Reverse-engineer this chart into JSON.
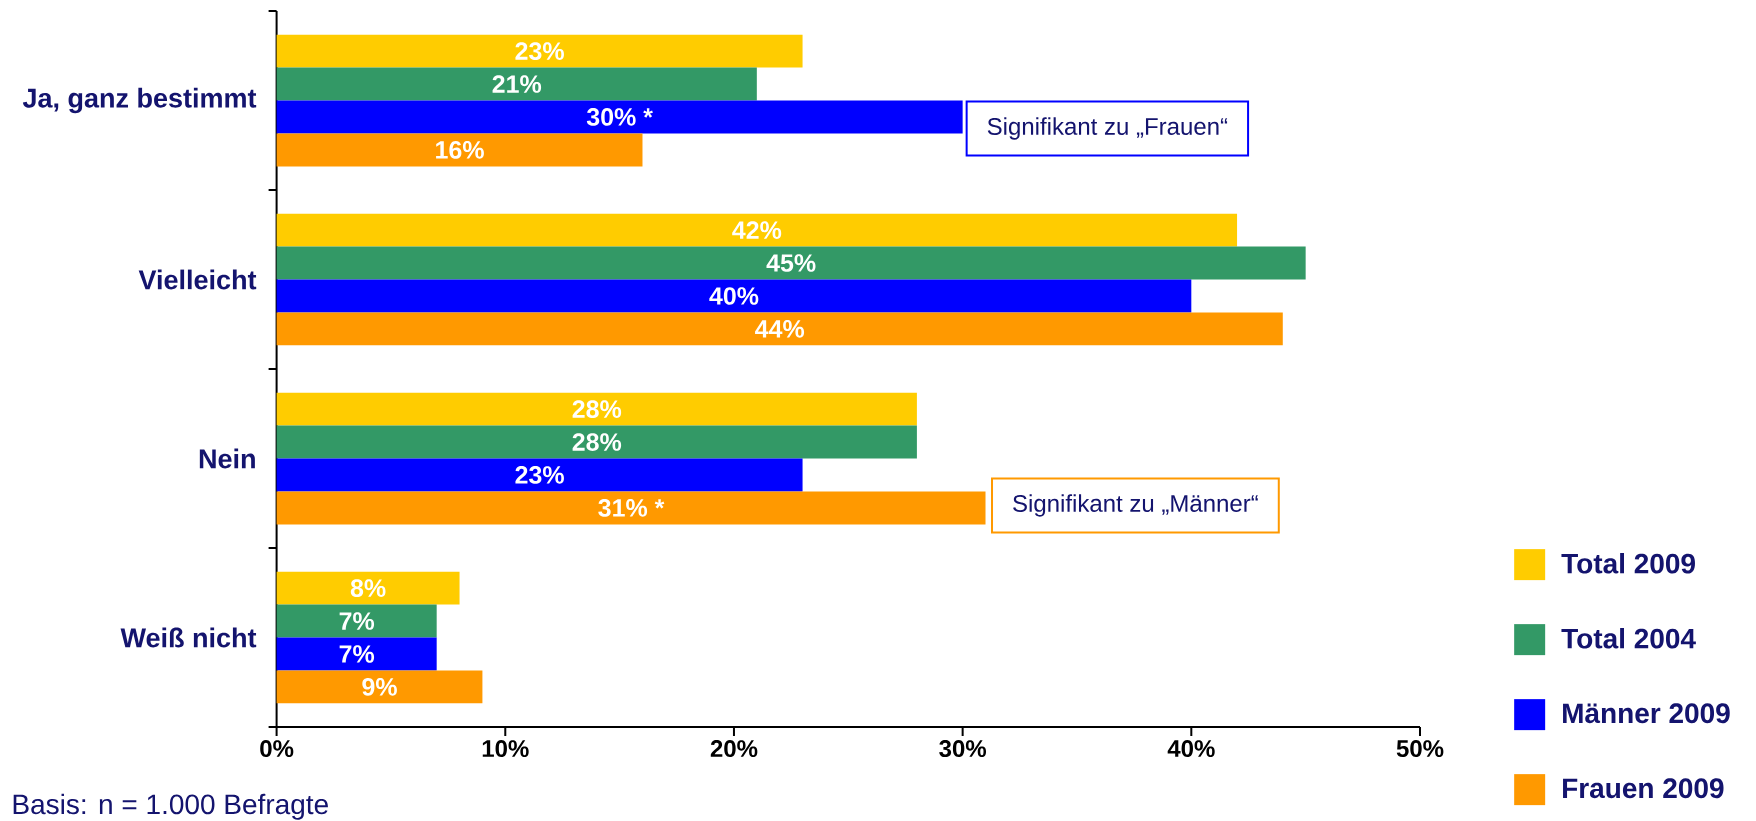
{
  "chart_data": {
    "type": "bar",
    "orientation": "horizontal",
    "categories": [
      "Ja, ganz bestimmt",
      "Vielleicht",
      "Nein",
      "Weiß nicht"
    ],
    "series": [
      {
        "name": "Total 2009",
        "color": "#ffcc00",
        "values": [
          23,
          42,
          28,
          8
        ],
        "value_labels": [
          "23%",
          "42%",
          "28%",
          "8%"
        ]
      },
      {
        "name": "Total 2004",
        "color": "#339966",
        "values": [
          21,
          45,
          28,
          7
        ],
        "value_labels": [
          "21%",
          "45%",
          "28%",
          "7%"
        ]
      },
      {
        "name": "Männer 2009",
        "color": "#0000ff",
        "values": [
          30,
          40,
          23,
          7
        ],
        "value_labels": [
          "30% *",
          "40%",
          "23%",
          "7%"
        ]
      },
      {
        "name": "Frauen 2009",
        "color": "#ff9900",
        "values": [
          16,
          44,
          31,
          9
        ],
        "value_labels": [
          "16%",
          "44%",
          "31% *",
          "9%"
        ]
      }
    ],
    "xlim": [
      0,
      50
    ],
    "xticks": [
      {
        "value": 0,
        "label": "0%"
      },
      {
        "value": 10,
        "label": "10%"
      },
      {
        "value": 20,
        "label": "20%"
      },
      {
        "value": 30,
        "label": "30%"
      },
      {
        "value": 40,
        "label": "40%"
      },
      {
        "value": 50,
        "label": "50%"
      }
    ],
    "legend": "bottom right",
    "annotations": [
      {
        "text": "Signifikant zu „Frauen“",
        "x": 30,
        "y": "Ja, ganz bestimmt"
      },
      "Signifikant zu „Männer“",
      "Basis: n = 1.000 Befragte"
    ]
  }
}
